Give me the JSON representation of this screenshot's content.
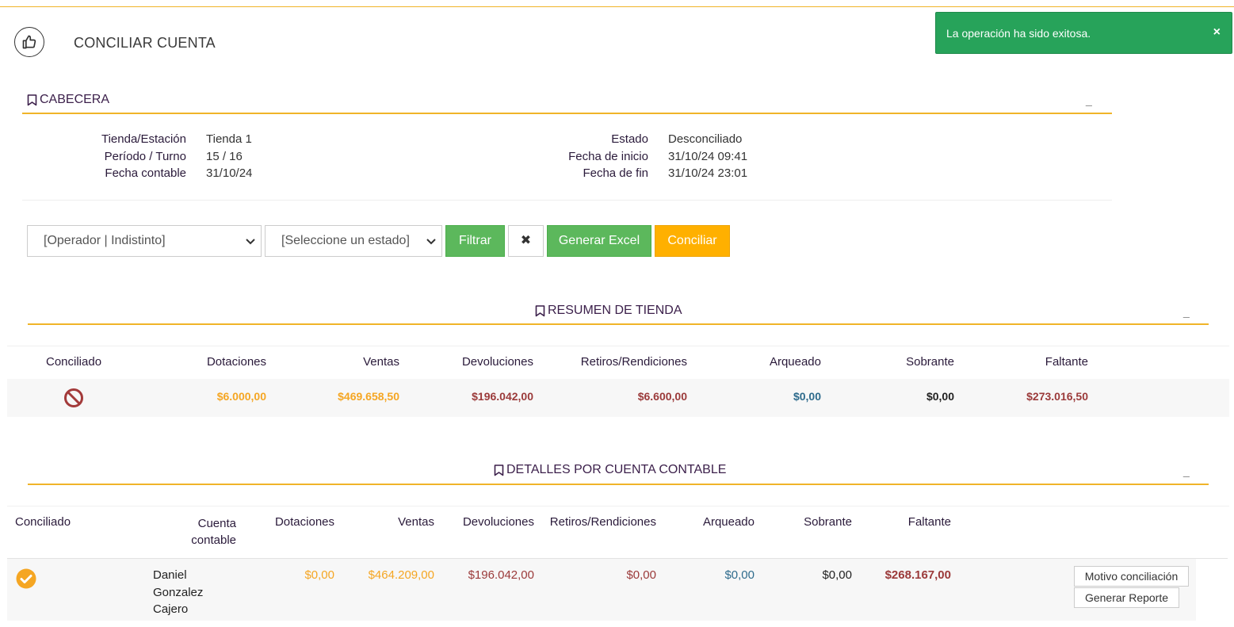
{
  "page": {
    "title": "CONCILIAR CUENTA"
  },
  "toast": {
    "message": "La operación ha sido exitosa.",
    "close": "×"
  },
  "cabecera": {
    "title": "CABECERA",
    "collapse": "_",
    "left_labels": [
      "Tienda/Estación",
      "Período / Turno",
      "Fecha contable"
    ],
    "left_values": [
      "Tienda 1",
      "15 / 16",
      "31/10/24"
    ],
    "right_labels": [
      "Estado",
      "Fecha de inicio",
      "Fecha de fin"
    ],
    "right_values": [
      "Desconciliado",
      "31/10/24 09:41",
      "31/10/24 23:01"
    ]
  },
  "filters": {
    "operador": "[Operador | Indistinto]",
    "estado": "[Seleccione un estado]",
    "filtrar": "Filtrar",
    "clear": "✖",
    "excel": "Generar Excel",
    "conciliar": "Conciliar"
  },
  "resumen": {
    "title": "RESUMEN DE TIENDA",
    "collapse": "_",
    "headers": [
      "Conciliado",
      "Dotaciones",
      "Ventas",
      "Devoluciones",
      "Retiros/Rendiciones",
      "Arqueado",
      "Sobrante",
      "Faltante"
    ],
    "row": {
      "status_icon": "prohibited-icon",
      "dotaciones": "$6.000,00",
      "ventas": "$469.658,50",
      "devoluciones": "$196.042,00",
      "retiros": "$6.600,00",
      "arqueado": "$0,00",
      "sobrante": "$0,00",
      "faltante": "$273.016,50"
    }
  },
  "detalles": {
    "title": "DETALLES POR CUENTA CONTABLE",
    "collapse": "_",
    "headers": {
      "conciliado": "Conciliado",
      "cuenta_line1": "Cuenta",
      "cuenta_line2": "contable",
      "dotaciones": "Dotaciones",
      "ventas": "Ventas",
      "devoluciones": "Devoluciones",
      "retiros": "Retiros/Rendiciones",
      "arqueado": "Arqueado",
      "sobrante": "Sobrante",
      "faltante": "Faltante"
    },
    "rows": [
      {
        "status_icon": "check-circle-icon",
        "cuenta_line1": "Daniel",
        "cuenta_line2": "Gonzalez",
        "cuenta_line3": "Cajero",
        "dotaciones": "$0,00",
        "ventas": "$464.209,00",
        "devoluciones": "$196.042,00",
        "retiros": "$0,00",
        "arqueado": "$0,00",
        "sobrante": "$0,00",
        "faltante": "$268.167,00",
        "motivo_button": "Motivo conciliación",
        "reporte_button": "Generar Reporte"
      }
    ]
  },
  "colors": {
    "accent": "#f0b429",
    "success": "#27a35a",
    "filter_green": "#5cb85c",
    "conciliar_orange": "#ffb000",
    "amount_orange": "#f5a623",
    "amount_red": "#9b3a3a",
    "amount_blue": "#2e6b8c"
  }
}
